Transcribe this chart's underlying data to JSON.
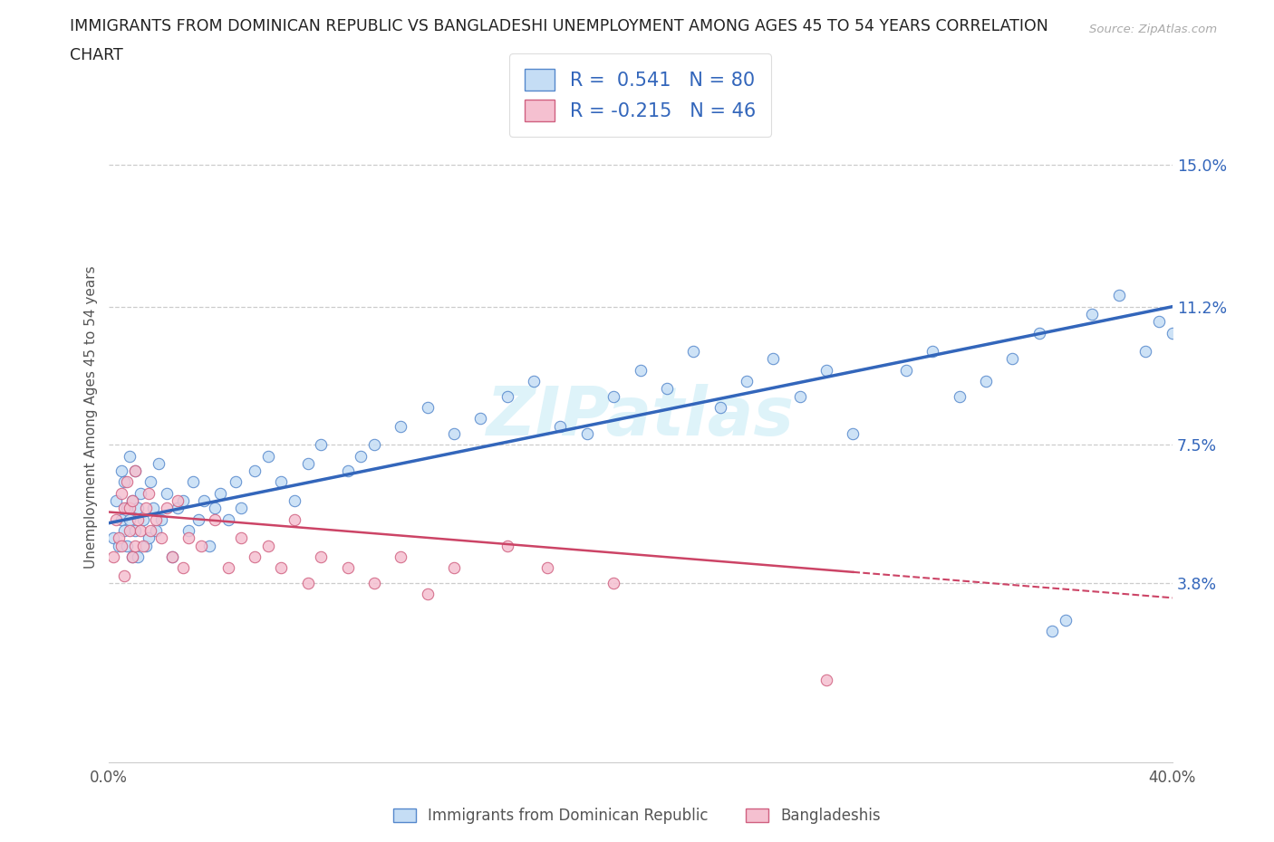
{
  "title_line1": "IMMIGRANTS FROM DOMINICAN REPUBLIC VS BANGLADESHI UNEMPLOYMENT AMONG AGES 45 TO 54 YEARS CORRELATION",
  "title_line2": "CHART",
  "source_text": "Source: ZipAtlas.com",
  "watermark": "ZIPatlas",
  "ylabel": "Unemployment Among Ages 45 to 54 years",
  "xlim": [
    0.0,
    0.4
  ],
  "ylim": [
    -0.01,
    0.175
  ],
  "ytick_labels_right": [
    "3.8%",
    "7.5%",
    "11.2%",
    "15.0%"
  ],
  "ytick_values_right": [
    0.038,
    0.075,
    0.112,
    0.15
  ],
  "blue_R": "0.541",
  "blue_N": "80",
  "pink_R": "-0.215",
  "pink_N": "46",
  "blue_fill": "#c5ddf5",
  "blue_edge": "#5588cc",
  "pink_fill": "#f5c0d0",
  "pink_edge": "#d06080",
  "blue_line_color": "#3366bb",
  "pink_line_color": "#cc4466",
  "legend_label1": "Immigrants from Dominican Republic",
  "legend_label2": "Bangladeshis",
  "blue_x": [
    0.002,
    0.003,
    0.004,
    0.005,
    0.005,
    0.006,
    0.006,
    0.007,
    0.007,
    0.008,
    0.008,
    0.009,
    0.009,
    0.01,
    0.01,
    0.011,
    0.011,
    0.012,
    0.013,
    0.014,
    0.015,
    0.016,
    0.017,
    0.018,
    0.019,
    0.02,
    0.022,
    0.024,
    0.026,
    0.028,
    0.03,
    0.032,
    0.034,
    0.036,
    0.038,
    0.04,
    0.042,
    0.045,
    0.048,
    0.05,
    0.055,
    0.06,
    0.065,
    0.07,
    0.075,
    0.08,
    0.09,
    0.095,
    0.1,
    0.11,
    0.12,
    0.13,
    0.14,
    0.15,
    0.16,
    0.17,
    0.18,
    0.19,
    0.2,
    0.21,
    0.22,
    0.23,
    0.24,
    0.25,
    0.26,
    0.27,
    0.28,
    0.3,
    0.31,
    0.32,
    0.33,
    0.34,
    0.35,
    0.355,
    0.36,
    0.37,
    0.38,
    0.39,
    0.395,
    0.4
  ],
  "blue_y": [
    0.05,
    0.06,
    0.048,
    0.055,
    0.068,
    0.052,
    0.065,
    0.058,
    0.048,
    0.072,
    0.055,
    0.045,
    0.06,
    0.052,
    0.068,
    0.058,
    0.045,
    0.062,
    0.055,
    0.048,
    0.05,
    0.065,
    0.058,
    0.052,
    0.07,
    0.055,
    0.062,
    0.045,
    0.058,
    0.06,
    0.052,
    0.065,
    0.055,
    0.06,
    0.048,
    0.058,
    0.062,
    0.055,
    0.065,
    0.058,
    0.068,
    0.072,
    0.065,
    0.06,
    0.07,
    0.075,
    0.068,
    0.072,
    0.075,
    0.08,
    0.085,
    0.078,
    0.082,
    0.088,
    0.092,
    0.08,
    0.078,
    0.088,
    0.095,
    0.09,
    0.1,
    0.085,
    0.092,
    0.098,
    0.088,
    0.095,
    0.078,
    0.095,
    0.1,
    0.088,
    0.092,
    0.098,
    0.105,
    0.025,
    0.028,
    0.11,
    0.115,
    0.1,
    0.108,
    0.105
  ],
  "pink_x": [
    0.002,
    0.003,
    0.004,
    0.005,
    0.005,
    0.006,
    0.006,
    0.007,
    0.008,
    0.008,
    0.009,
    0.009,
    0.01,
    0.01,
    0.011,
    0.012,
    0.013,
    0.014,
    0.015,
    0.016,
    0.018,
    0.02,
    0.022,
    0.024,
    0.026,
    0.028,
    0.03,
    0.035,
    0.04,
    0.045,
    0.05,
    0.055,
    0.06,
    0.065,
    0.07,
    0.075,
    0.08,
    0.09,
    0.1,
    0.11,
    0.12,
    0.13,
    0.15,
    0.165,
    0.19,
    0.27
  ],
  "pink_y": [
    0.045,
    0.055,
    0.05,
    0.048,
    0.062,
    0.058,
    0.04,
    0.065,
    0.052,
    0.058,
    0.045,
    0.06,
    0.048,
    0.068,
    0.055,
    0.052,
    0.048,
    0.058,
    0.062,
    0.052,
    0.055,
    0.05,
    0.058,
    0.045,
    0.06,
    0.042,
    0.05,
    0.048,
    0.055,
    0.042,
    0.05,
    0.045,
    0.048,
    0.042,
    0.055,
    0.038,
    0.045,
    0.042,
    0.038,
    0.045,
    0.035,
    0.042,
    0.048,
    0.042,
    0.038,
    0.012
  ],
  "blue_line_x0": 0.0,
  "blue_line_y0": 0.054,
  "blue_line_x1": 0.4,
  "blue_line_y1": 0.112,
  "pink_line_x0": 0.0,
  "pink_line_y0": 0.057,
  "pink_line_x1": 0.4,
  "pink_line_y1": 0.034
}
